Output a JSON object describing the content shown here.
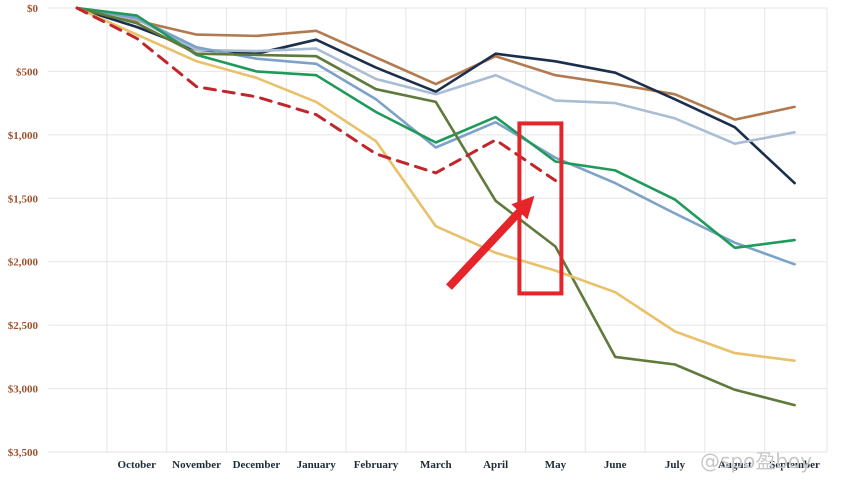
{
  "chart_data": {
    "type": "line",
    "title": "",
    "xlabel": "",
    "ylabel": "",
    "categories": [
      "",
      "October",
      "November",
      "December",
      "January",
      "February",
      "March",
      "April",
      "May",
      "June",
      "July",
      "August",
      "September"
    ],
    "y_tick_labels": [
      "$0",
      "$500",
      "$1,000",
      "$1,500",
      "$2,000",
      "$2,500",
      "$3,000",
      "$3,500"
    ],
    "y_tick_values": [
      0,
      500,
      1000,
      1500,
      2000,
      2500,
      3000,
      3500
    ],
    "ylim": [
      0,
      3500
    ],
    "y_inverted": true,
    "grid": true,
    "legend": "none",
    "series": [
      {
        "color": "#b27a4e",
        "dashed": false,
        "values": [
          0,
          100,
          210,
          220,
          180,
          390,
          600,
          380,
          530,
          600,
          680,
          880,
          780
        ]
      },
      {
        "color": "#1b2f4d",
        "dashed": false,
        "values": [
          0,
          150,
          330,
          360,
          250,
          470,
          660,
          360,
          420,
          510,
          720,
          940,
          1380
        ]
      },
      {
        "color": "#a9bdd4",
        "dashed": false,
        "values": [
          0,
          90,
          330,
          340,
          320,
          560,
          680,
          530,
          730,
          750,
          870,
          1070,
          980
        ]
      },
      {
        "color": "#7da2c9",
        "dashed": false,
        "values": [
          0,
          80,
          310,
          400,
          440,
          720,
          1100,
          900,
          1180,
          1380,
          1620,
          1850,
          2020
        ]
      },
      {
        "color": "#1f9a5b",
        "dashed": false,
        "values": [
          0,
          60,
          370,
          500,
          530,
          820,
          1060,
          860,
          1210,
          1280,
          1510,
          1890,
          1830
        ]
      },
      {
        "color": "#5f7a3b",
        "dashed": false,
        "values": [
          0,
          120,
          360,
          370,
          380,
          640,
          740,
          1520,
          1880,
          2750,
          2810,
          3010,
          3130
        ]
      },
      {
        "color": "#e8c16a",
        "dashed": false,
        "values": [
          0,
          210,
          420,
          550,
          740,
          1050,
          1720,
          1930,
          2070,
          2240,
          2550,
          2720,
          2780
        ]
      },
      {
        "color": "#c0262b",
        "dashed": true,
        "values": [
          0,
          240,
          620,
          700,
          840,
          1150,
          1300,
          1040,
          1360,
          null,
          null,
          null,
          null
        ]
      }
    ],
    "annotations": {
      "highlight_box_color": "#e5252a",
      "highlight_category": "May",
      "highlight_range": [
        910,
        2250
      ],
      "arrow_color": "#e5252a",
      "arrow_from": {
        "category_index": 6.22,
        "value": 2200
      },
      "arrow_to": {
        "category_index": 7.65,
        "value": 1480
      }
    }
  },
  "watermark": "@spo盈boy"
}
